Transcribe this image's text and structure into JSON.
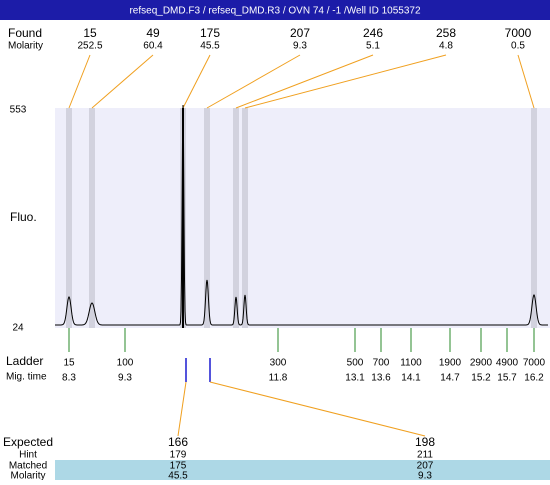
{
  "header": {
    "title": "refseq_DMD.F3 / refseq_DMD.R3 / OVN 74 / -1 /Well ID 1055372"
  },
  "found": {
    "label": "Found",
    "sublabel": "Molarity",
    "peaks": [
      {
        "size": "15",
        "molarity": "252.5"
      },
      {
        "size": "49",
        "molarity": "60.4"
      },
      {
        "size": "175",
        "molarity": "45.5"
      },
      {
        "size": "207",
        "molarity": "9.3"
      },
      {
        "size": "246",
        "molarity": "5.1"
      },
      {
        "size": "258",
        "molarity": "4.8"
      },
      {
        "size": "7000",
        "molarity": "0.5"
      }
    ]
  },
  "plot": {
    "y_label": "Fluo.",
    "y_max": "553",
    "y_min": "24"
  },
  "ladder": {
    "label": "Ladder",
    "sublabel": "Mig. time",
    "steps": [
      {
        "size": "15",
        "time": "8.3"
      },
      {
        "size": "100",
        "time": "9.3"
      },
      {
        "size": "300",
        "time": "11.8"
      },
      {
        "size": "500",
        "time": "13.1"
      },
      {
        "size": "700",
        "time": "13.6"
      },
      {
        "size": "1100",
        "time": "14.1"
      },
      {
        "size": "1900",
        "time": "14.7"
      },
      {
        "size": "2900",
        "time": "15.2"
      },
      {
        "size": "4900",
        "time": "15.7"
      },
      {
        "size": "7000",
        "time": "16.2"
      }
    ]
  },
  "expected": {
    "labels": [
      "Expected",
      "Hint",
      "Matched",
      "Molarity"
    ],
    "columns": [
      {
        "expected": "166",
        "hint": "179",
        "matched": "175",
        "molarity": "45.5"
      },
      {
        "expected": "198",
        "hint": "211",
        "matched": "207",
        "molarity": "9.3"
      }
    ]
  }
}
